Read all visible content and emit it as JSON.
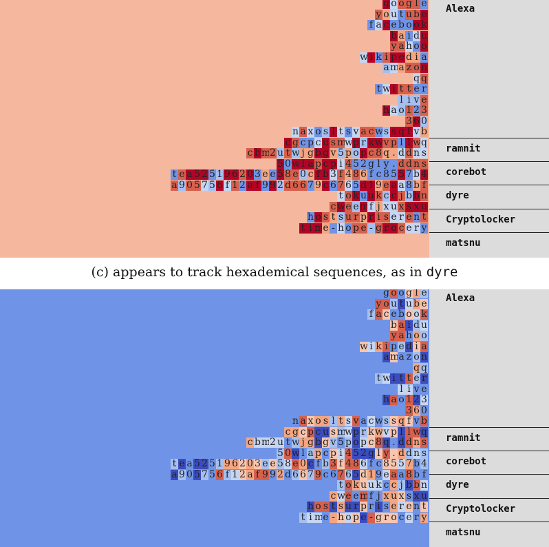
{
  "panels": [
    {
      "id": "panel-top",
      "background": "#f5b89f",
      "caption": null
    },
    {
      "id": "panel-bottom",
      "background": "#6f93e6",
      "caption": null
    }
  ],
  "caption_c": {
    "text": "(c) appears to track hexademical sequences, as in ",
    "mono": "dyre"
  },
  "sequences": [
    "google",
    "youtube",
    "facebook",
    "baidu",
    "yahoo",
    "wikipedia",
    "amazon",
    "qq",
    "twitter",
    "live",
    "hao123",
    "360",
    "naxosltsvacwssqfvb",
    "cgcpcusmwprkwvpllwq",
    "cbm2utwjgbgv5popc8q.ddns",
    "50wlapcpi452gly.ddns",
    "tea52519620 3ee58e0cfb3f486fc8557b4",
    "a905756f12af992d6679c6765d19eaa8bf",
    "tokuukccjbbn",
    "cweemfjxuxsxu",
    "hostsurpriserent",
    "time-hope-grocery"
  ],
  "groups": [
    {
      "label": "Alexa",
      "rows": [
        0,
        11
      ]
    },
    {
      "label": "ramnit",
      "rows": [
        12,
        13
      ]
    },
    {
      "label": "corebot",
      "rows": [
        14,
        15
      ]
    },
    {
      "label": "dyre",
      "rows": [
        16,
        17
      ]
    },
    {
      "label": "Cryptolocker",
      "rows": [
        18,
        19
      ]
    },
    {
      "label": "matsnu",
      "rows": [
        20,
        21
      ]
    }
  ],
  "palette": {
    "deep_red": "#b40426",
    "red": "#d6604d",
    "light_red": "#f4a582",
    "pale_red": "#f7c6b0",
    "neutral": "#dddddd",
    "pale_blue": "#c6d6f2",
    "light_blue": "#a5c0f0",
    "blue": "#6f93e6",
    "deep_blue": "#3b4cc0"
  }
}
